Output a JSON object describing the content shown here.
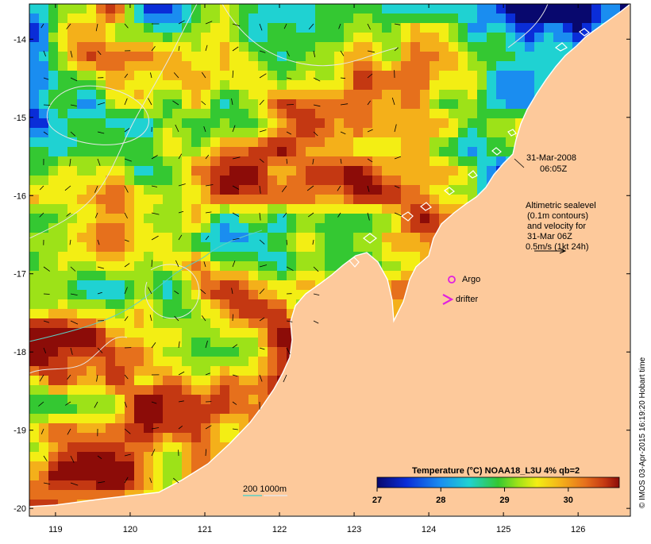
{
  "map": {
    "lon_ticks": [
      "119",
      "120",
      "121",
      "122",
      "123",
      "124",
      "125",
      "126"
    ],
    "lat_ticks": [
      "-14",
      "-15",
      "-16",
      "-17",
      "-18",
      "-19",
      "-20"
    ],
    "lon_range": [
      118.65,
      126.7
    ],
    "lat_range": [
      -20.1,
      -13.55
    ]
  },
  "annotations": {
    "date": "31-Mar-2008",
    "time": "06:05Z",
    "altimetry_line1": "Altimetric sealevel",
    "altimetry_line2": "(0.1m contours)",
    "altimetry_line3": "and velocity for",
    "altimetry_line4": "31-Mar 06Z",
    "altimetry_line5": "0.5m/s (1kt 24h)",
    "argo_label": "Argo",
    "drifter_label": "drifter",
    "depth_label": "200  1000m"
  },
  "colorbar": {
    "title": "Temperature (°C) NOAA18_L3U 4% qb=2",
    "ticks": [
      "27",
      "28",
      "29",
      "30"
    ],
    "range": [
      27,
      30.8
    ]
  },
  "credit": "© IMOS 03-Apr-2015 16:19:20 Hobart time",
  "colors": {
    "land": "#fdc99b",
    "argo": "#e020e0",
    "drifter": "#e020e0",
    "contour": "#e6e6e6",
    "depth_200": "#5ccfc5",
    "depth_1000": "#e6e6e6"
  }
}
